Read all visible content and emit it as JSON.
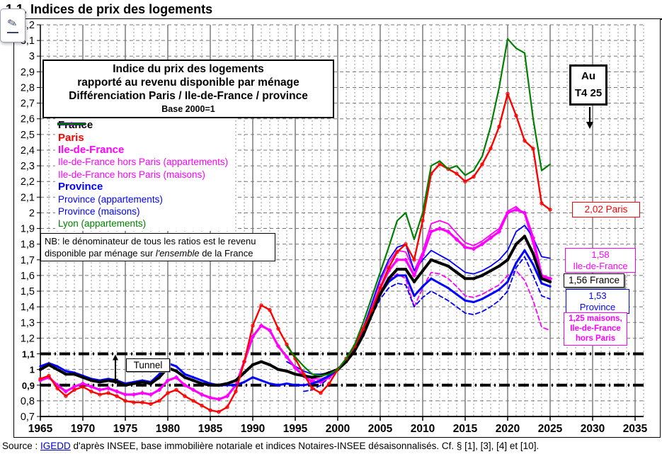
{
  "page": {
    "title": "1.1. Indices de prix des logements",
    "source": {
      "prefix": "Source : ",
      "link": "IGEDD",
      "suffix": " d'après INSEE, base immobilière notariale et indices Notaires-INSEE désaisonnalisés. Cf. § [1], [3], [4] et [10]."
    }
  },
  "annotations": {
    "title_box": {
      "line1": "Indice du prix des logements",
      "line2": "rapporté au revenu disponible par ménage",
      "line3": "Différenciation Paris / Ile-de-France / province",
      "line4": "Base 2000=1"
    },
    "nb_box": {
      "before": "NB: le dénominateur de tous les ratios est le revenu disponible par ménage sur ",
      "italic": "l'ensemble",
      "after": " de la France"
    },
    "au_box": {
      "line1": "Au",
      "line2": "T4 25"
    },
    "tunnel_label": "Tunnel",
    "end_labels": {
      "paris": {
        "text": "2,02 Paris"
      },
      "idf": {
        "line1": "1,58",
        "line2": "Ile-de-France"
      },
      "france": {
        "text": "1,56 France"
      },
      "province": {
        "line1": "1,53",
        "line2": "Province"
      },
      "idf_maisons": {
        "line1": "1,25 maisons,",
        "line2": "Ile-de-France",
        "line3": "hors Paris"
      }
    }
  },
  "legend": {
    "items": [
      {
        "label": "France",
        "color": "#000000",
        "weight": "bold",
        "line": "solid",
        "width": 4,
        "marker": "square"
      },
      {
        "label": "Paris",
        "color": "#FF0000",
        "weight": "bold",
        "line": "solid",
        "width": 2.4,
        "marker": "circle"
      },
      {
        "label": "Ile-de-France",
        "color": "#FF00FF",
        "weight": "bold",
        "line": "solid",
        "width": 3.2,
        "marker": "diamond"
      },
      {
        "label": "Ile-de-France hors Paris (appartements)",
        "color": "#FF00FF",
        "weight": "normal",
        "line": "solid",
        "width": 1.8,
        "marker": null
      },
      {
        "label": "Ile-de-France hors Paris (maisons)",
        "color": "#FF00FF",
        "weight": "normal",
        "line": "dashed",
        "width": 1.8,
        "marker": null
      },
      {
        "label": "Province",
        "color": "#0000FF",
        "weight": "bold",
        "line": "solid",
        "width": 3,
        "marker": "dot"
      },
      {
        "label": "Province (appartements)",
        "color": "#0000FF",
        "weight": "normal",
        "line": "solid",
        "width": 1.8,
        "marker": null
      },
      {
        "label": "Province (maisons)",
        "color": "#0000FF",
        "weight": "normal",
        "line": "dashed",
        "width": 1.8,
        "marker": null
      },
      {
        "label": "Lyon (appartements)",
        "color": "#008000",
        "weight": "normal",
        "line": "solid",
        "width": 2.2,
        "marker": null
      }
    ]
  },
  "chart_data": {
    "type": "line",
    "title": "Indice du prix des logements rapporté au revenu disponible par ménage — Différenciation Paris / Ile-de-France / province — Base 2000=1",
    "xlabel": "",
    "ylabel": "",
    "xlim": [
      1965,
      2036
    ],
    "ylim": [
      0.7,
      3.2
    ],
    "x_ticks": [
      1965,
      1970,
      1975,
      1980,
      1985,
      1990,
      1995,
      2000,
      2005,
      2010,
      2015,
      2020,
      2025,
      2030,
      2035
    ],
    "y_tick_step": 0.1,
    "y_bold": [
      0.9,
      1,
      1.1
    ],
    "tunnel_lines": [
      0.9,
      1.1
    ],
    "grid": true,
    "legend_position": "upper-left",
    "series": [
      {
        "name": "Ile-de-France hors Paris (maisons)",
        "color": "#FF00FF",
        "width": 1.8,
        "dash": "6,4",
        "marker": null,
        "z": 1,
        "start": 1996,
        "values": [
          0.95,
          0.93,
          0.93,
          0.96,
          1.0,
          1.06,
          1.14,
          1.25,
          1.37,
          1.49,
          1.57,
          1.61,
          1.58,
          1.4,
          1.52,
          1.62,
          1.61,
          1.58,
          1.53,
          1.47,
          1.46,
          1.48,
          1.51,
          1.54,
          1.6,
          1.63,
          1.57,
          1.44,
          1.27,
          1.25
        ]
      },
      {
        "name": "Province (maisons)",
        "color": "#0000FF",
        "width": 1.8,
        "dash": "6,4",
        "marker": null,
        "z": 2,
        "start": 1996,
        "values": [
          0.86,
          0.87,
          0.9,
          0.95,
          1.0,
          1.05,
          1.12,
          1.22,
          1.34,
          1.45,
          1.52,
          1.55,
          1.54,
          1.4,
          1.46,
          1.5,
          1.47,
          1.44,
          1.4,
          1.36,
          1.35,
          1.37,
          1.4,
          1.44,
          1.5,
          1.65,
          1.72,
          1.6,
          1.47,
          1.45
        ]
      },
      {
        "name": "Ile-de-France hors Paris (appartements)",
        "color": "#FF00FF",
        "width": 1.8,
        "dash": null,
        "marker": null,
        "z": 3,
        "start": 1996,
        "values": [
          0.97,
          0.94,
          0.94,
          0.96,
          1.0,
          1.06,
          1.15,
          1.27,
          1.41,
          1.56,
          1.68,
          1.76,
          1.75,
          1.63,
          1.75,
          1.93,
          1.95,
          1.93,
          1.87,
          1.81,
          1.79,
          1.82,
          1.86,
          1.9,
          2.01,
          2.04,
          1.99,
          1.8,
          1.59,
          1.57
        ]
      },
      {
        "name": "Province (appartements)",
        "color": "#0000FF",
        "width": 1.8,
        "dash": null,
        "marker": null,
        "z": 4,
        "start": 1994,
        "values": [
          1.05,
          1.02,
          0.99,
          0.97,
          0.97,
          0.98,
          1.0,
          1.06,
          1.14,
          1.26,
          1.42,
          1.58,
          1.7,
          1.78,
          1.8,
          1.63,
          1.7,
          1.76,
          1.73,
          1.7,
          1.66,
          1.62,
          1.61,
          1.63,
          1.66,
          1.7,
          1.76,
          1.88,
          1.92,
          1.84,
          1.72,
          1.71
        ]
      },
      {
        "name": "Ile-de-France",
        "color": "#FF00FF",
        "width": 3.2,
        "dash": null,
        "marker": "diamond",
        "z": 5,
        "start": 1965,
        "values": [
          0.93,
          0.95,
          0.9,
          0.86,
          0.89,
          0.91,
          0.89,
          0.87,
          0.88,
          0.86,
          0.84,
          0.84,
          0.85,
          0.84,
          0.87,
          0.93,
          0.95,
          0.9,
          0.87,
          0.84,
          0.82,
          0.81,
          0.83,
          0.9,
          1.05,
          1.21,
          1.28,
          1.25,
          1.15,
          1.08,
          1.01,
          0.96,
          0.92,
          0.92,
          0.95,
          1.0,
          1.06,
          1.14,
          1.25,
          1.38,
          1.52,
          1.63,
          1.7,
          1.7,
          1.6,
          1.73,
          1.88,
          1.9,
          1.88,
          1.83,
          1.78,
          1.77,
          1.8,
          1.84,
          1.88,
          2.0,
          2.02,
          2.0,
          1.84,
          1.6,
          1.58
        ]
      },
      {
        "name": "Province",
        "color": "#0000FF",
        "width": 3,
        "dash": null,
        "marker": "dot",
        "z": 6,
        "start": 1965,
        "values": [
          1.02,
          1.04,
          1.02,
          0.99,
          0.98,
          0.96,
          0.94,
          0.93,
          0.94,
          0.93,
          0.91,
          0.92,
          0.93,
          0.92,
          0.97,
          1.04,
          1.02,
          0.97,
          0.95,
          0.93,
          0.91,
          0.9,
          0.9,
          0.9,
          0.92,
          0.95,
          0.93,
          0.91,
          0.9,
          0.91,
          0.9,
          0.9,
          0.91,
          0.93,
          0.96,
          1.0,
          1.05,
          1.12,
          1.23,
          1.36,
          1.48,
          1.56,
          1.6,
          1.6,
          1.47,
          1.53,
          1.58,
          1.55,
          1.52,
          1.48,
          1.44,
          1.43,
          1.45,
          1.48,
          1.51,
          1.56,
          1.68,
          1.76,
          1.67,
          1.55,
          1.53
        ]
      },
      {
        "name": "France",
        "color": "#000000",
        "width": 4,
        "dash": null,
        "marker": "square",
        "z": 7,
        "start": 1965,
        "values": [
          1.0,
          1.03,
          1.0,
          0.97,
          0.97,
          0.95,
          0.93,
          0.92,
          0.93,
          0.92,
          0.9,
          0.91,
          0.92,
          0.91,
          0.95,
          1.01,
          0.99,
          0.95,
          0.93,
          0.91,
          0.9,
          0.9,
          0.91,
          0.93,
          0.98,
          1.03,
          1.05,
          1.03,
          1.0,
          0.99,
          0.97,
          0.96,
          0.95,
          0.96,
          0.98,
          1.0,
          1.05,
          1.12,
          1.22,
          1.35,
          1.48,
          1.58,
          1.64,
          1.64,
          1.56,
          1.63,
          1.7,
          1.68,
          1.66,
          1.62,
          1.58,
          1.58,
          1.6,
          1.63,
          1.66,
          1.7,
          1.8,
          1.85,
          1.74,
          1.58,
          1.56
        ]
      },
      {
        "name": "Paris",
        "color": "#FF0000",
        "width": 2.4,
        "dash": null,
        "marker": "circle",
        "z": 8,
        "start": 1965,
        "values": [
          0.94,
          0.96,
          0.88,
          0.83,
          0.87,
          0.89,
          0.86,
          0.84,
          0.85,
          0.83,
          0.8,
          0.79,
          0.79,
          0.78,
          0.8,
          0.85,
          0.87,
          0.83,
          0.8,
          0.77,
          0.74,
          0.73,
          0.76,
          0.86,
          1.05,
          1.28,
          1.41,
          1.38,
          1.26,
          1.16,
          1.07,
          0.97,
          0.88,
          0.85,
          0.91,
          1.0,
          1.07,
          1.15,
          1.26,
          1.38,
          1.52,
          1.65,
          1.75,
          1.8,
          1.7,
          1.95,
          2.25,
          2.31,
          2.28,
          2.25,
          2.2,
          2.23,
          2.31,
          2.41,
          2.55,
          2.76,
          2.62,
          2.46,
          2.41,
          2.06,
          2.02
        ]
      },
      {
        "name": "Lyon (appartements)",
        "color": "#008000",
        "width": 2.2,
        "dash": null,
        "marker": null,
        "z": 9,
        "start": 1994,
        "values": [
          1.15,
          1.08,
          1.02,
          0.97,
          0.96,
          0.97,
          1.0,
          1.07,
          1.16,
          1.3,
          1.46,
          1.62,
          1.78,
          1.95,
          2.0,
          1.83,
          2.0,
          2.3,
          2.33,
          2.28,
          2.3,
          2.24,
          2.27,
          2.36,
          2.55,
          2.8,
          3.11,
          3.05,
          3.02,
          2.6,
          2.27,
          2.31
        ]
      }
    ]
  }
}
